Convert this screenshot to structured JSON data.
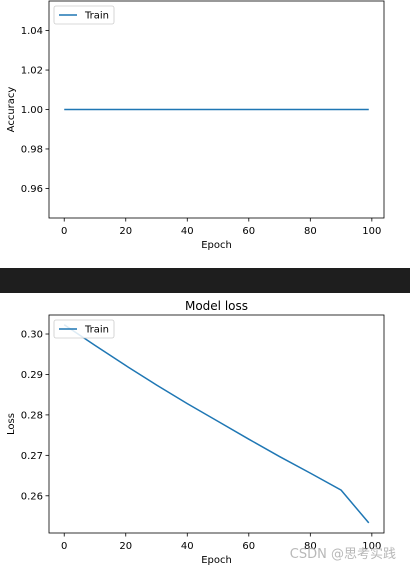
{
  "chart_data": [
    {
      "type": "line",
      "title": "",
      "xlabel": "Epoch",
      "ylabel": "Accuracy",
      "xlim": [
        -4.95,
        103.95
      ],
      "ylim": [
        0.945,
        1.055
      ],
      "xticks": [
        0,
        20,
        40,
        60,
        80,
        100
      ],
      "yticks": [
        0.96,
        0.98,
        1.0,
        1.02,
        1.04
      ],
      "ytick_labels": [
        "0.96",
        "0.98",
        "1.00",
        "1.02",
        "1.04"
      ],
      "legend": {
        "position": "top-left",
        "entries": [
          "Train"
        ]
      },
      "series": [
        {
          "name": "Train",
          "color": "#1f77b4",
          "x": [
            0,
            99
          ],
          "y": [
            1.0,
            1.0
          ]
        }
      ]
    },
    {
      "type": "line",
      "title": "Model loss",
      "xlabel": "Epoch",
      "ylabel": "Loss",
      "xlim": [
        -4.95,
        103.95
      ],
      "ylim": [
        0.2508,
        0.3047
      ],
      "xticks": [
        0,
        20,
        40,
        60,
        80,
        100
      ],
      "yticks": [
        0.26,
        0.27,
        0.28,
        0.29,
        0.3
      ],
      "ytick_labels": [
        "0.26",
        "0.27",
        "0.28",
        "0.29",
        "0.30"
      ],
      "legend": {
        "position": "top-left",
        "entries": [
          "Train"
        ]
      },
      "series": [
        {
          "name": "Train",
          "color": "#1f77b4",
          "x": [
            0,
            10,
            20,
            30,
            40,
            50,
            60,
            70,
            80,
            90,
            99
          ],
          "y": [
            0.3023,
            0.2972,
            0.2922,
            0.2874,
            0.2828,
            0.2784,
            0.274,
            0.2697,
            0.2656,
            0.2614,
            0.2533
          ]
        }
      ]
    }
  ],
  "watermark": "CSDN @思考实践"
}
